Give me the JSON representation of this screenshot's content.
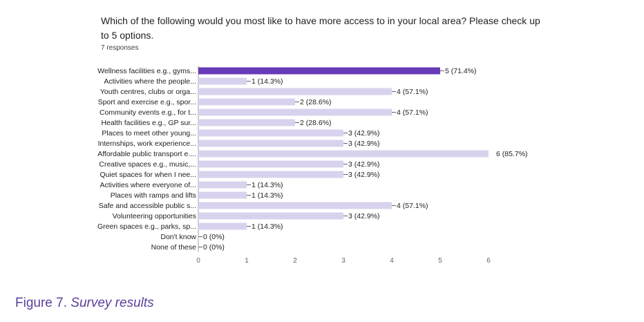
{
  "question": "Which of the following would you most like to have more access to in your local area? Please check up to 5 options.",
  "responses_label": "7 responses",
  "figure_caption": {
    "label": "Figure 7.",
    "title": "Survey results"
  },
  "colors": {
    "highlight_bar": "#673ab7",
    "bar": "#d9d2ee",
    "text": "#202124",
    "caption": "#5b3f9b"
  },
  "chart_data": {
    "type": "bar",
    "orientation": "horizontal",
    "categories": [
      "Wellness facilities e.g., gyms...",
      "Activities where the people...",
      "Youth centres, clubs or orga...",
      "Sport and exercise e.g., spor...",
      "Community events e.g., for t...",
      "Health facilities e.g., GP sur...",
      "Places to meet other young...",
      "Internships, work experience...",
      "Affordable public transport e....",
      "Creative spaces e.g., music,...",
      "Quiet spaces for when I nee...",
      "Activities where everyone of...",
      "Places with ramps and lifts",
      "Safe and accessible public s...",
      "Volunteering opportunities",
      "Green spaces e.g., parks, sp...",
      "Don't know",
      "None of these"
    ],
    "values": [
      5,
      1,
      4,
      2,
      4,
      2,
      3,
      3,
      6,
      3,
      3,
      1,
      1,
      4,
      3,
      1,
      0,
      0
    ],
    "data_labels": [
      "5 (71.4%)",
      "1 (14.3%)",
      "4 (57.1%)",
      "2 (28.6%)",
      "4 (57.1%)",
      "2 (28.6%)",
      "3 (42.9%)",
      "3 (42.9%)",
      "6 (85.7%)",
      "3 (42.9%)",
      "3 (42.9%)",
      "1 (14.3%)",
      "1 (14.3%)",
      "4 (57.1%)",
      "3 (42.9%)",
      "1 (14.3%)",
      "0 (0%)",
      "0 (0%)"
    ],
    "highlight_index": 0,
    "xlim": [
      0,
      6
    ],
    "xticks": [
      "0",
      "1",
      "2",
      "3",
      "4",
      "5",
      "6"
    ]
  }
}
